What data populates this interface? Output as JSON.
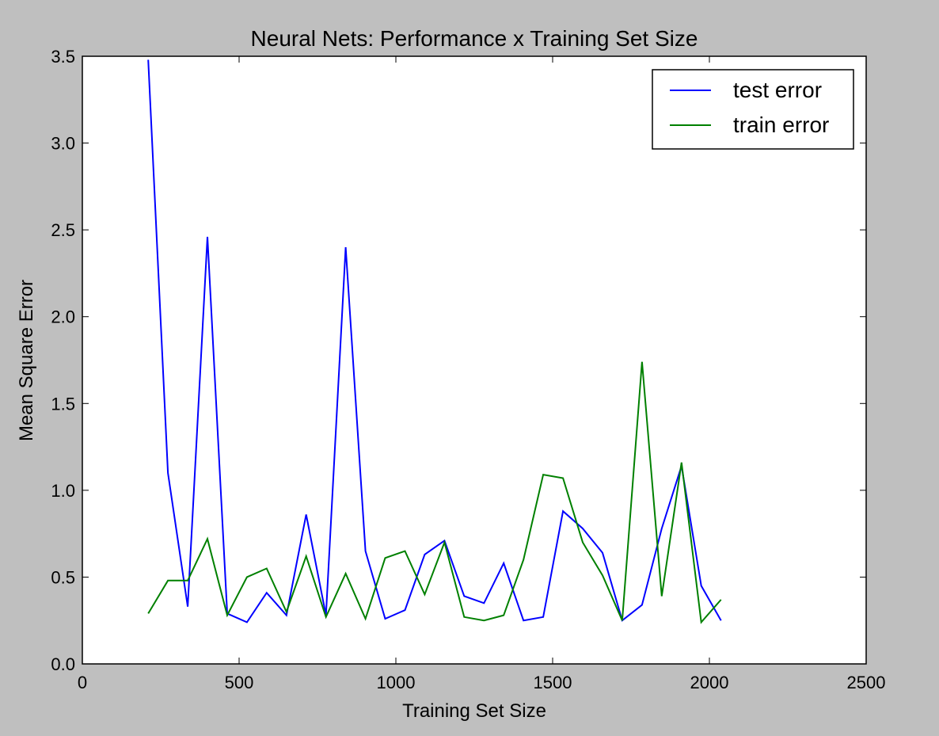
{
  "chart_data": {
    "type": "line",
    "title": "Neural Nets: Performance x Training Set Size",
    "xlabel": "Training Set Size",
    "ylabel": "Mean Square Error",
    "xlim": [
      0,
      2500
    ],
    "ylim": [
      0,
      3.5
    ],
    "xticks": [
      0,
      500,
      1000,
      1500,
      2000,
      2500
    ],
    "yticks": [
      0.0,
      0.5,
      1.0,
      1.5,
      2.0,
      2.5,
      3.0,
      3.5
    ],
    "xtick_labels": [
      "0",
      "500",
      "1000",
      "1500",
      "2000",
      "2500"
    ],
    "ytick_labels": [
      "0.0",
      "0.5",
      "1.0",
      "1.5",
      "2.0",
      "2.5",
      "3.0",
      "3.5"
    ],
    "grid": false,
    "legend_position": "top-right",
    "x": [
      210,
      273,
      336,
      399,
      462,
      525,
      588,
      651,
      714,
      777,
      840,
      903,
      966,
      1029,
      1092,
      1155,
      1218,
      1281,
      1344,
      1407,
      1470,
      1533,
      1596,
      1659,
      1722,
      1785,
      1848,
      1911,
      1974,
      2037
    ],
    "series": [
      {
        "name": "test error",
        "color": "#0000ff",
        "values": [
          3.48,
          1.1,
          0.33,
          2.46,
          0.29,
          0.24,
          0.41,
          0.28,
          0.86,
          0.28,
          2.4,
          0.65,
          0.26,
          0.31,
          0.63,
          0.71,
          0.39,
          0.35,
          0.58,
          0.25,
          0.27,
          0.88,
          0.78,
          0.64,
          0.25,
          0.34,
          0.78,
          1.14,
          0.45,
          0.25
        ]
      },
      {
        "name": "train error",
        "color": "#008000",
        "values": [
          0.29,
          0.48,
          0.48,
          0.72,
          0.28,
          0.5,
          0.55,
          0.3,
          0.62,
          0.27,
          0.52,
          0.26,
          0.61,
          0.65,
          0.4,
          0.7,
          0.27,
          0.25,
          0.28,
          0.6,
          1.09,
          1.07,
          0.7,
          0.51,
          0.25,
          1.74,
          0.39,
          1.16,
          0.24,
          0.37
        ]
      }
    ]
  }
}
